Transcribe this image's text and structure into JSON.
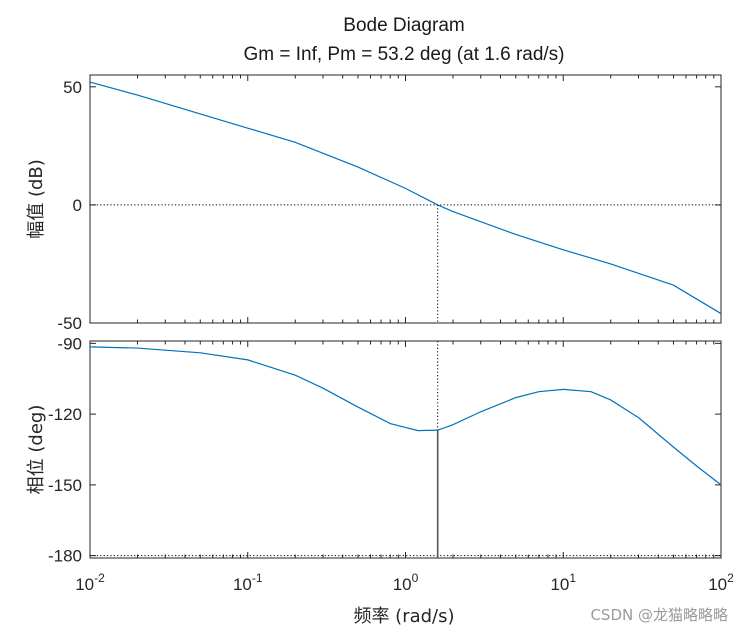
{
  "chart_data": {
    "type": "line",
    "title": "Bode Diagram",
    "subtitle": "Gm = Inf,  Pm = 53.2 deg (at 1.6 rad/s)",
    "xlabel": "频率  (rad/s)",
    "xscale": "log",
    "xlim": [
      0.01,
      100
    ],
    "x_ticks": [
      {
        "value": 0.01,
        "base": "10",
        "exp": "-2"
      },
      {
        "value": 0.1,
        "base": "10",
        "exp": "-1"
      },
      {
        "value": 1,
        "base": "10",
        "exp": "0"
      },
      {
        "value": 10,
        "base": "10",
        "exp": "1"
      },
      {
        "value": 100,
        "base": "10",
        "exp": "2"
      }
    ],
    "crossover": {
      "frequency": 1.6,
      "phase": -126.8
    },
    "panels": [
      {
        "name": "magnitude",
        "ylabel": "幅值 (dB)",
        "ylim": [
          -50,
          55
        ],
        "yticks": [
          {
            "value": 50,
            "label": "50"
          },
          {
            "value": 0,
            "label": "0"
          },
          {
            "value": -50,
            "label": "-50"
          }
        ],
        "reference_line": 0,
        "series": [
          {
            "x": [
              0.01,
              0.02,
              0.05,
              0.1,
              0.2,
              0.5,
              1.0,
              1.6,
              2,
              5,
              10,
              20,
              50,
              100
            ],
            "y": [
              52,
              46.5,
              38.5,
              32.5,
              26.5,
              16,
              7,
              0,
              -2.8,
              -12.5,
              -19,
              -25,
              -34,
              -46
            ]
          }
        ]
      },
      {
        "name": "phase",
        "ylabel": "相位 (deg)",
        "ylim": [
          -181,
          -89
        ],
        "yticks": [
          {
            "value": -90,
            "label": "-90"
          },
          {
            "value": -120,
            "label": "-120"
          },
          {
            "value": -150,
            "label": "-150"
          },
          {
            "value": -180,
            "label": "-180"
          }
        ],
        "reference_line": -180,
        "series": [
          {
            "x": [
              0.01,
              0.02,
              0.05,
              0.1,
              0.2,
              0.3,
              0.5,
              0.8,
              1.2,
              1.6,
              2,
              3,
              5,
              7,
              10,
              15,
              20,
              30,
              50,
              70,
              100
            ],
            "y": [
              -91.5,
              -92,
              -94,
              -97,
              -103.5,
              -109,
              -117,
              -124,
              -127,
              -126.8,
              -124.5,
              -119,
              -113,
              -110.5,
              -109.5,
              -110.5,
              -114,
              -121.5,
              -134,
              -142,
              -150
            ]
          }
        ]
      }
    ]
  },
  "watermark": "CSDN @龙猫略略略",
  "colors": {
    "line": "#0072BD",
    "axis": "#262626",
    "marker": "#000000",
    "background": "#ffffff"
  }
}
